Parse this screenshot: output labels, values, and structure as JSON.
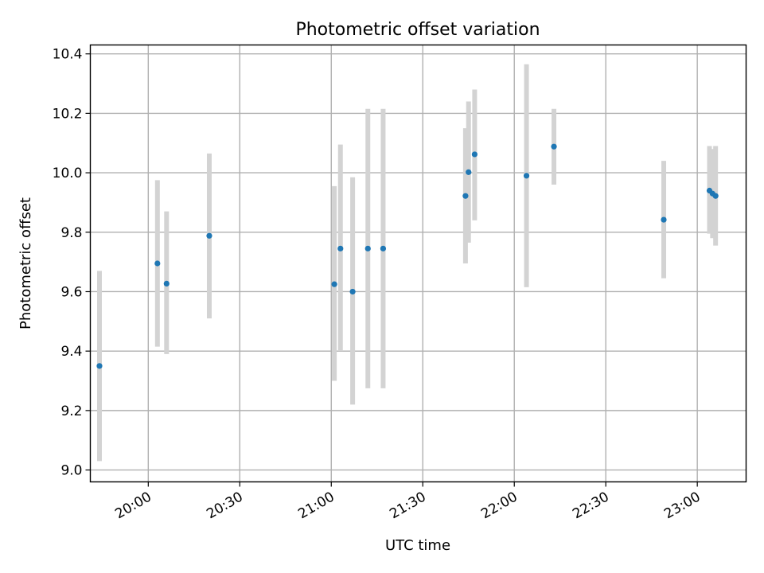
{
  "chart_data": {
    "type": "scatter",
    "title": "Photometric offset variation",
    "xlabel": "UTC time",
    "ylabel": "Photometric offset",
    "x_unit": "minutes after 00:00 UTC",
    "xlim": [
      "19:41",
      "23:16"
    ],
    "ylim": [
      8.96,
      10.43
    ],
    "x_ticks": [
      "20:00",
      "20:30",
      "21:00",
      "21:30",
      "22:00",
      "22:30",
      "23:00"
    ],
    "y_ticks": [
      "9.0",
      "9.2",
      "9.4",
      "9.6",
      "9.8",
      "10.0",
      "10.2",
      "10.4"
    ],
    "grid": true,
    "errorbar_color": "#d3d3d3",
    "point_color": "#1f77b4",
    "points": [
      {
        "time": "19:44",
        "y": 9.35,
        "ymin": 9.03,
        "ymax": 9.67
      },
      {
        "time": "20:03",
        "y": 9.695,
        "ymin": 9.415,
        "ymax": 9.975
      },
      {
        "time": "20:06",
        "y": 9.627,
        "ymin": 9.39,
        "ymax": 9.87
      },
      {
        "time": "20:20",
        "y": 9.788,
        "ymin": 9.51,
        "ymax": 10.065
      },
      {
        "time": "21:01",
        "y": 9.625,
        "ymin": 9.3,
        "ymax": 9.955
      },
      {
        "time": "21:03",
        "y": 9.745,
        "ymin": 9.4,
        "ymax": 10.095
      },
      {
        "time": "21:07",
        "y": 9.6,
        "ymin": 9.22,
        "ymax": 9.985
      },
      {
        "time": "21:12",
        "y": 9.745,
        "ymin": 9.275,
        "ymax": 10.215
      },
      {
        "time": "21:17",
        "y": 9.745,
        "ymin": 9.275,
        "ymax": 10.215
      },
      {
        "time": "21:44",
        "y": 9.922,
        "ymin": 9.695,
        "ymax": 10.15
      },
      {
        "time": "21:45",
        "y": 10.002,
        "ymin": 9.765,
        "ymax": 10.24
      },
      {
        "time": "21:47",
        "y": 10.062,
        "ymin": 9.84,
        "ymax": 10.28
      },
      {
        "time": "22:04",
        "y": 9.99,
        "ymin": 9.615,
        "ymax": 10.365
      },
      {
        "time": "22:13",
        "y": 10.088,
        "ymin": 9.96,
        "ymax": 10.215
      },
      {
        "time": "22:49",
        "y": 9.842,
        "ymin": 9.645,
        "ymax": 10.04
      },
      {
        "time": "23:04",
        "y": 9.94,
        "ymin": 9.795,
        "ymax": 10.09
      },
      {
        "time": "23:05",
        "y": 9.93,
        "ymin": 9.78,
        "ymax": 10.08
      },
      {
        "time": "23:06",
        "y": 9.922,
        "ymin": 9.755,
        "ymax": 10.09
      }
    ]
  }
}
